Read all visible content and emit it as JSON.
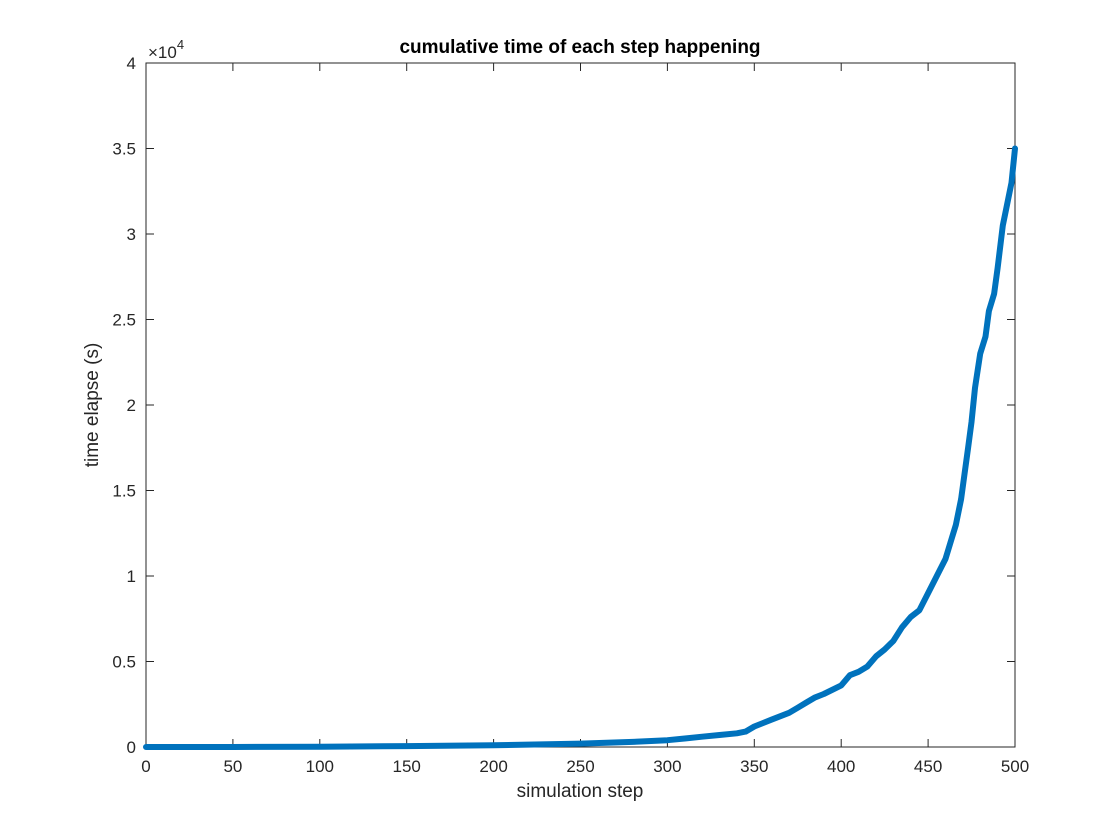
{
  "chart_data": {
    "type": "line",
    "title": "cumulative time of each step happening",
    "xlabel": "simulation step",
    "ylabel": "time elapse (s)",
    "xlim": [
      0,
      500
    ],
    "ylim": [
      0,
      40000
    ],
    "x_ticks": [
      0,
      50,
      100,
      150,
      200,
      250,
      300,
      350,
      400,
      450,
      500
    ],
    "y_ticks": [
      0,
      5000,
      10000,
      15000,
      20000,
      25000,
      30000,
      35000,
      40000
    ],
    "x_tick_labels": [
      "0",
      "50",
      "100",
      "150",
      "200",
      "250",
      "300",
      "350",
      "400",
      "450",
      "500"
    ],
    "y_tick_labels": [
      "0",
      "0.5",
      "1",
      "1.5",
      "2",
      "2.5",
      "3",
      "3.5",
      "4"
    ],
    "y_exponent_label": "×10",
    "y_exponent_power": "4",
    "grid": false,
    "line_color": "#0072BD",
    "series": [
      {
        "x": [
          0,
          50,
          100,
          150,
          200,
          250,
          280,
          300,
          310,
          320,
          330,
          340,
          345,
          350,
          360,
          370,
          375,
          380,
          385,
          390,
          400,
          405,
          410,
          415,
          420,
          425,
          430,
          435,
          440,
          445,
          450,
          455,
          460,
          463,
          466,
          469,
          471,
          473,
          475,
          477,
          480,
          483,
          485,
          488,
          490,
          493,
          495,
          498,
          500
        ],
        "y": [
          0,
          0,
          20,
          50,
          100,
          200,
          300,
          400,
          500,
          600,
          700,
          800,
          900,
          1200,
          1600,
          2000,
          2300,
          2600,
          2900,
          3100,
          3600,
          4200,
          4400,
          4700,
          5300,
          5700,
          6200,
          7000,
          7600,
          8000,
          9000,
          10000,
          11000,
          12000,
          13000,
          14500,
          16000,
          17500,
          19000,
          21000,
          23000,
          24000,
          25500,
          26500,
          28000,
          30500,
          31500,
          33000,
          35000
        ]
      }
    ]
  }
}
